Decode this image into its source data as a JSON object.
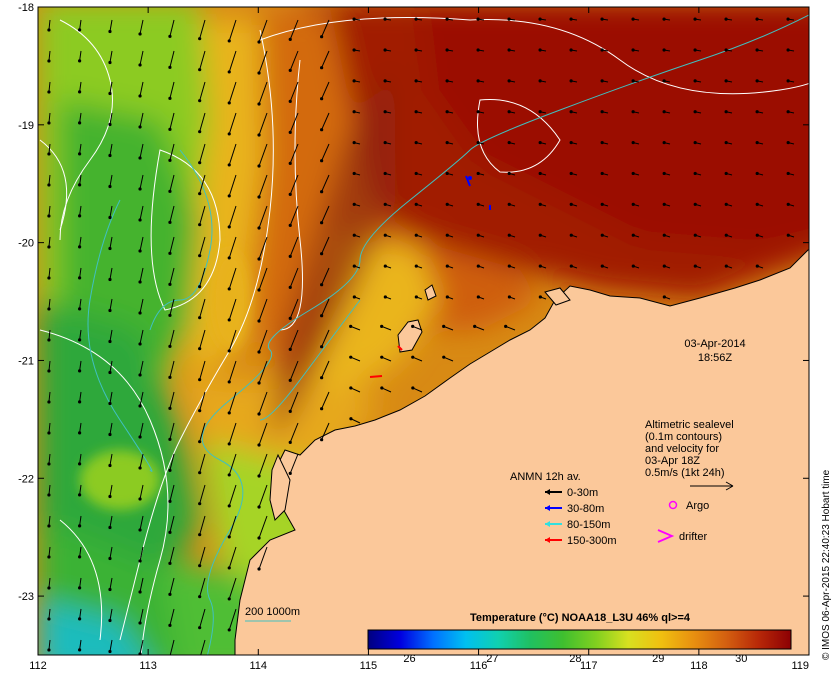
{
  "map": {
    "lon_range": [
      112,
      119
    ],
    "lat_range": [
      -23.5,
      -18
    ],
    "lon_ticks": [
      112,
      113,
      114,
      115,
      116,
      117,
      118,
      119
    ],
    "lat_ticks": [
      -18,
      -19,
      -20,
      -21,
      -22,
      -23
    ],
    "colors": {
      "land": "#fbc89a",
      "sst_hot": "#9b0d05",
      "sst_warm": "#d36a0f",
      "sst_mid": "#e8b21a",
      "sst_cool": "#3aa93a",
      "sst_cold": "#1fbcbd",
      "contour_sealevel": "#ffffff",
      "isobath": "#40c0c0"
    }
  },
  "timestamp": {
    "date": "03-Apr-2014",
    "time": "18:56Z"
  },
  "velocity_info": {
    "lines": [
      "Altimetric sealevel",
      "(0.1m contours)",
      "and velocity for",
      "03-Apr 18Z",
      "0.5m/s (1kt 24h)"
    ]
  },
  "anmn_legend": {
    "title": "ANMN 12h av.",
    "items": [
      {
        "label": "0-30m",
        "color": "#000000"
      },
      {
        "label": "30-80m",
        "color": "#0000ff"
      },
      {
        "label": "80-150m",
        "color": "#30e0e0"
      },
      {
        "label": "150-300m",
        "color": "#ff0000"
      }
    ]
  },
  "markers": {
    "argo": {
      "label": "Argo",
      "color": "#ff00ff"
    },
    "drifter": {
      "label": "drifter",
      "color": "#ff00ff"
    }
  },
  "isobath_legend": {
    "label": "200  1000m"
  },
  "colorbar": {
    "title": "Temperature (°C) NOAA18_L3U 46% ql>=4",
    "range": [
      25.5,
      30.6
    ],
    "ticks": [
      26,
      27,
      28,
      29,
      30
    ],
    "stops": [
      "#000080",
      "#0000e0",
      "#0070ff",
      "#00c0f0",
      "#10d0b0",
      "#20c060",
      "#3fbf2f",
      "#80d020",
      "#d8e020",
      "#f0c010",
      "#e89010",
      "#d46010",
      "#b82808",
      "#8c0004"
    ]
  },
  "credit": "© IMOS 06-Apr-2015 22:40:23 Hobart time"
}
